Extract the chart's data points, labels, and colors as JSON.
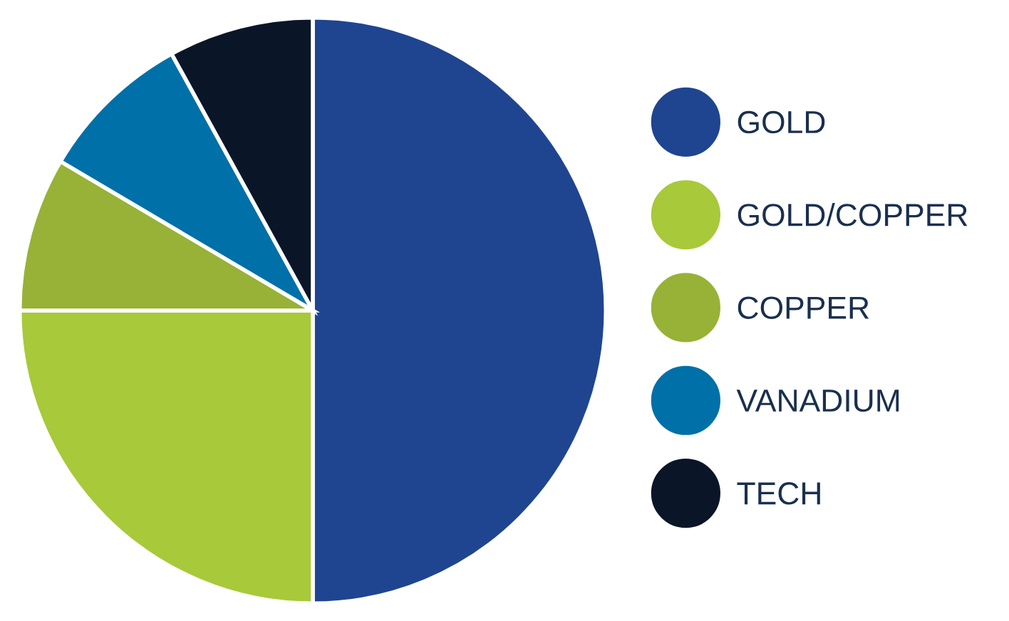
{
  "chart_data": {
    "type": "pie",
    "categories": [
      "GOLD",
      "GOLD/COPPER",
      "COPPER",
      "VANADIUM",
      "TECH"
    ],
    "values": [
      50,
      25,
      8.5,
      8.5,
      8
    ],
    "colors": [
      "#1f4591",
      "#a8c93a",
      "#97b236",
      "#0070a8",
      "#0a1628"
    ],
    "legend": "right"
  }
}
